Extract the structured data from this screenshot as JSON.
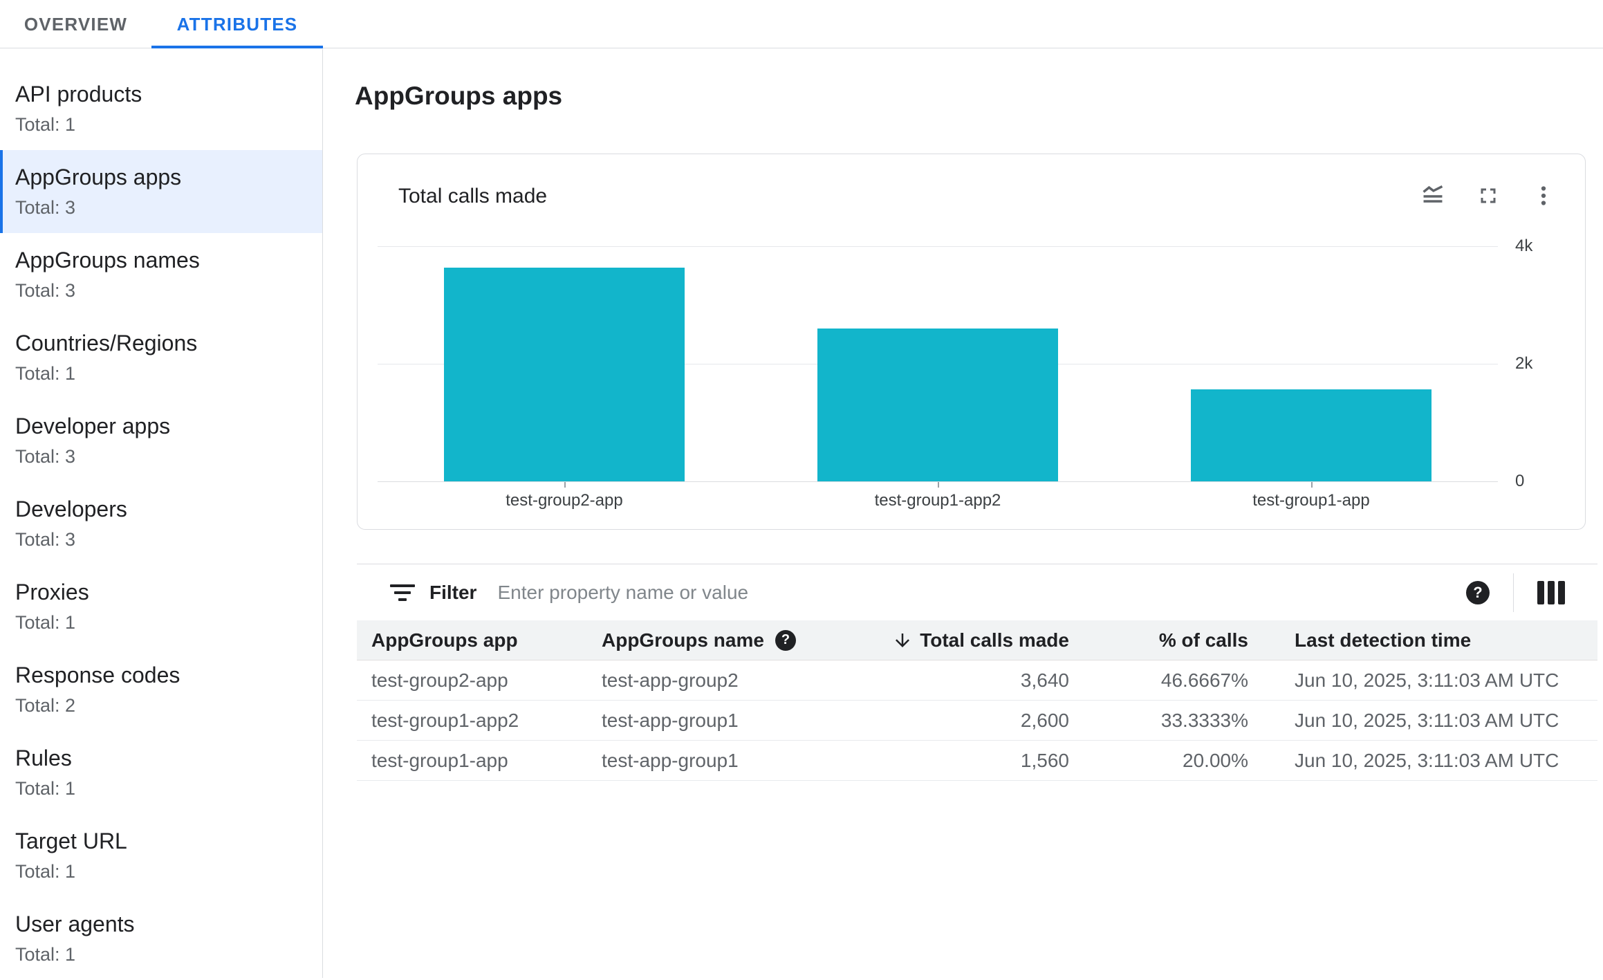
{
  "tabs": [
    {
      "label": "OVERVIEW",
      "active": false
    },
    {
      "label": "ATTRIBUTES",
      "active": true
    }
  ],
  "sidebar": {
    "items": [
      {
        "label": "API products",
        "total": "Total: 1",
        "selected": false
      },
      {
        "label": "AppGroups apps",
        "total": "Total: 3",
        "selected": true
      },
      {
        "label": "AppGroups names",
        "total": "Total: 3",
        "selected": false
      },
      {
        "label": "Countries/Regions",
        "total": "Total: 1",
        "selected": false
      },
      {
        "label": "Developer apps",
        "total": "Total: 3",
        "selected": false
      },
      {
        "label": "Developers",
        "total": "Total: 3",
        "selected": false
      },
      {
        "label": "Proxies",
        "total": "Total: 1",
        "selected": false
      },
      {
        "label": "Response codes",
        "total": "Total: 2",
        "selected": false
      },
      {
        "label": "Rules",
        "total": "Total: 1",
        "selected": false
      },
      {
        "label": "Target URL",
        "total": "Total: 1",
        "selected": false
      },
      {
        "label": "User agents",
        "total": "Total: 1",
        "selected": false
      }
    ]
  },
  "main": {
    "title": "AppGroups apps",
    "card": {
      "title": "Total calls made",
      "icons": [
        "legend-toggle-icon",
        "fullscreen-icon",
        "more-vert-icon"
      ]
    },
    "filter": {
      "label": "Filter",
      "placeholder": "Enter property name or value"
    },
    "table": {
      "columns": [
        "AppGroups app",
        "AppGroups name",
        "Total calls made",
        "% of calls",
        "Last detection time"
      ],
      "sorted_column": "Total calls made",
      "sort_direction": "descending",
      "rows": [
        [
          "test-group2-app",
          "test-app-group2",
          "3,640",
          "46.6667%",
          "Jun 10, 2025, 3:11:03 AM UTC"
        ],
        [
          "test-group1-app2",
          "test-app-group1",
          "2,600",
          "33.3333%",
          "Jun 10, 2025, 3:11:03 AM UTC"
        ],
        [
          "test-group1-app",
          "test-app-group1",
          "1,560",
          "20.00%",
          "Jun 10, 2025, 3:11:03 AM UTC"
        ]
      ]
    }
  },
  "chart_data": {
    "type": "bar",
    "title": "Total calls made",
    "categories": [
      "test-group2-app",
      "test-group1-app2",
      "test-group1-app"
    ],
    "values": [
      3640,
      2600,
      1560
    ],
    "ylim": [
      0,
      4000
    ],
    "ytick_labels": [
      "4k",
      "2k",
      "0"
    ],
    "bar_color": "#12b5cb",
    "grid": true,
    "legend": false
  },
  "colors": {
    "accent_blue": "#1a73e8",
    "bar_teal": "#12b5cb",
    "selected_bg": "#e8f0fe",
    "divider": "#dadce0",
    "text_primary": "#202124",
    "text_secondary": "#5f6368"
  }
}
